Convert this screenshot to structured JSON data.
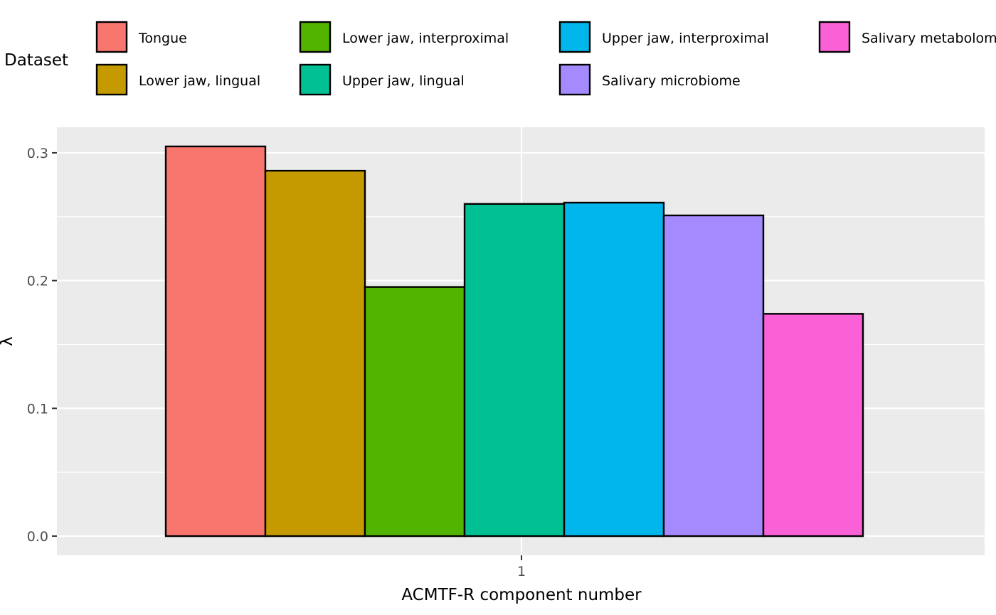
{
  "chart_data": {
    "type": "bar",
    "xlabel": "ACMTF-R component number",
    "ylabel": "λ",
    "categories": [
      "1"
    ],
    "ylim": [
      -0.015,
      0.32
    ],
    "yticks": [
      0.0,
      0.1,
      0.2,
      0.3
    ],
    "ytick_labels": [
      "0.0",
      "0.1",
      "0.2",
      "0.3"
    ],
    "grid": true,
    "legend": {
      "title": "Dataset",
      "position": "top"
    },
    "series": [
      {
        "name": "Tongue",
        "values": [
          0.305
        ],
        "color": "#F8766D"
      },
      {
        "name": "Lower jaw, lingual",
        "values": [
          0.286
        ],
        "color": "#C49A00"
      },
      {
        "name": "Lower jaw, interproximal",
        "values": [
          0.195
        ],
        "color": "#53B400"
      },
      {
        "name": "Upper jaw, lingual",
        "values": [
          0.26
        ],
        "color": "#00C094"
      },
      {
        "name": "Upper jaw, interproximal",
        "values": [
          0.261
        ],
        "color": "#00B6EB"
      },
      {
        "name": "Salivary microbiome",
        "values": [
          0.251
        ],
        "color": "#A58AFF"
      },
      {
        "name": "Salivary metabolome",
        "values": [
          0.174
        ],
        "color": "#FB61D7"
      }
    ]
  }
}
